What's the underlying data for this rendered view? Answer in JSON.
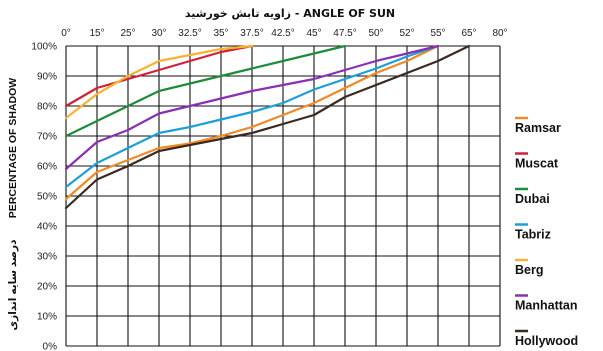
{
  "chart_data": {
    "type": "line",
    "title": "زاویه تابش خورشید - ANGLE OF SUN",
    "xlabel": "ANGLE OF SUN",
    "ylabel": "PERCENTAGE OF SHADOW",
    "ylabel_fa": "درصد سایه اندازی",
    "x_ticks": [
      "0°",
      "15°",
      "25°",
      "30°",
      "32.5°",
      "35°",
      "37.5°",
      "42.5°",
      "45°",
      "47.5°",
      "50°",
      "52°",
      "55°",
      "65°",
      "80°"
    ],
    "y_ticks": [
      "0%",
      "10%",
      "20%",
      "30%",
      "40%",
      "50%",
      "60%",
      "70%",
      "80%",
      "90%",
      "100%"
    ],
    "ylim": [
      0,
      100
    ],
    "grid": true,
    "legend_position": "right",
    "series": [
      {
        "name": "Ramsar",
        "color": "#f08a24",
        "x_index": [
          0,
          1,
          2,
          3,
          4,
          5,
          6,
          7,
          8,
          9,
          10,
          11,
          12
        ],
        "values": [
          49,
          58,
          62,
          66,
          67.5,
          70,
          73,
          77,
          81,
          86,
          91,
          95,
          100
        ]
      },
      {
        "name": "Muscat",
        "color": "#d0213a",
        "x_index": [
          0,
          1,
          2,
          3,
          4,
          5,
          6
        ],
        "values": [
          80,
          86,
          89,
          92,
          95,
          98,
          100
        ]
      },
      {
        "name": "Dubai",
        "color": "#1f8c3b",
        "x_index": [
          0,
          1,
          2,
          3,
          4,
          5,
          6,
          7,
          8,
          9
        ],
        "values": [
          70,
          75,
          80,
          85,
          87.5,
          90,
          92.5,
          95,
          97.5,
          100
        ]
      },
      {
        "name": "Tabriz",
        "color": "#1e9fd8",
        "x_index": [
          0,
          1,
          2,
          3,
          4,
          5,
          6,
          7,
          8,
          9,
          10,
          11,
          12
        ],
        "values": [
          53,
          61,
          66,
          71,
          73,
          75.5,
          78,
          81,
          85.5,
          89,
          92.5,
          96.5,
          100
        ]
      },
      {
        "name": "Berg",
        "color": "#f5b330",
        "x_index": [
          0,
          1,
          2,
          3,
          4,
          5,
          6
        ],
        "values": [
          76,
          84,
          90,
          95,
          97,
          99,
          100
        ]
      },
      {
        "name": "Manhattan",
        "color": "#8a2fb3",
        "x_index": [
          0,
          1,
          2,
          3,
          4,
          5,
          6,
          7,
          8,
          9,
          10,
          11,
          12
        ],
        "values": [
          59,
          68,
          72,
          77.5,
          80,
          82.5,
          85,
          87,
          89,
          92,
          95,
          97.5,
          100
        ]
      },
      {
        "name": "Hollywood",
        "color": "#3a2a22",
        "x_index": [
          0,
          1,
          2,
          3,
          4,
          5,
          6,
          7,
          8,
          9,
          10,
          11,
          12,
          13
        ],
        "values": [
          46,
          55.5,
          60,
          65,
          67,
          69,
          71,
          74,
          77,
          83,
          87,
          91,
          95,
          100
        ]
      }
    ]
  }
}
